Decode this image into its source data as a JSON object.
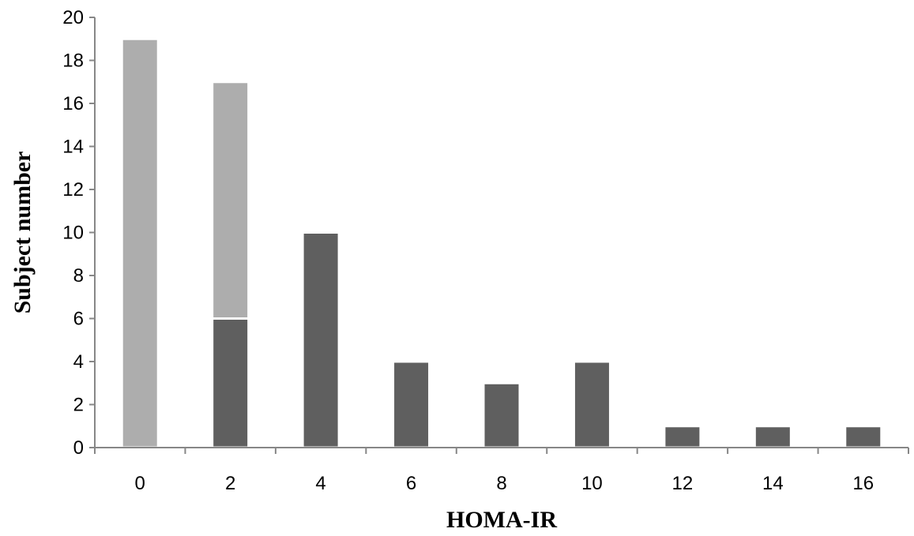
{
  "chart_data": {
    "type": "bar",
    "stacked": true,
    "categories": [
      "0",
      "2",
      "4",
      "6",
      "8",
      "10",
      "12",
      "14",
      "16"
    ],
    "series": [
      {
        "color": "#5f5f5f",
        "values": [
          0,
          6,
          10,
          4,
          3,
          4,
          1,
          1,
          1
        ]
      },
      {
        "color": "#adadad",
        "values": [
          19,
          11,
          0,
          0,
          0,
          0,
          0,
          0,
          0
        ]
      }
    ],
    "xlabel": "HOMA-IR",
    "ylabel": "Subject number",
    "ylim": [
      0,
      20
    ],
    "yticks": [
      "0",
      "2",
      "4",
      "6",
      "8",
      "10",
      "12",
      "14",
      "16",
      "18",
      "20"
    ],
    "grid": false,
    "legend": "none"
  }
}
